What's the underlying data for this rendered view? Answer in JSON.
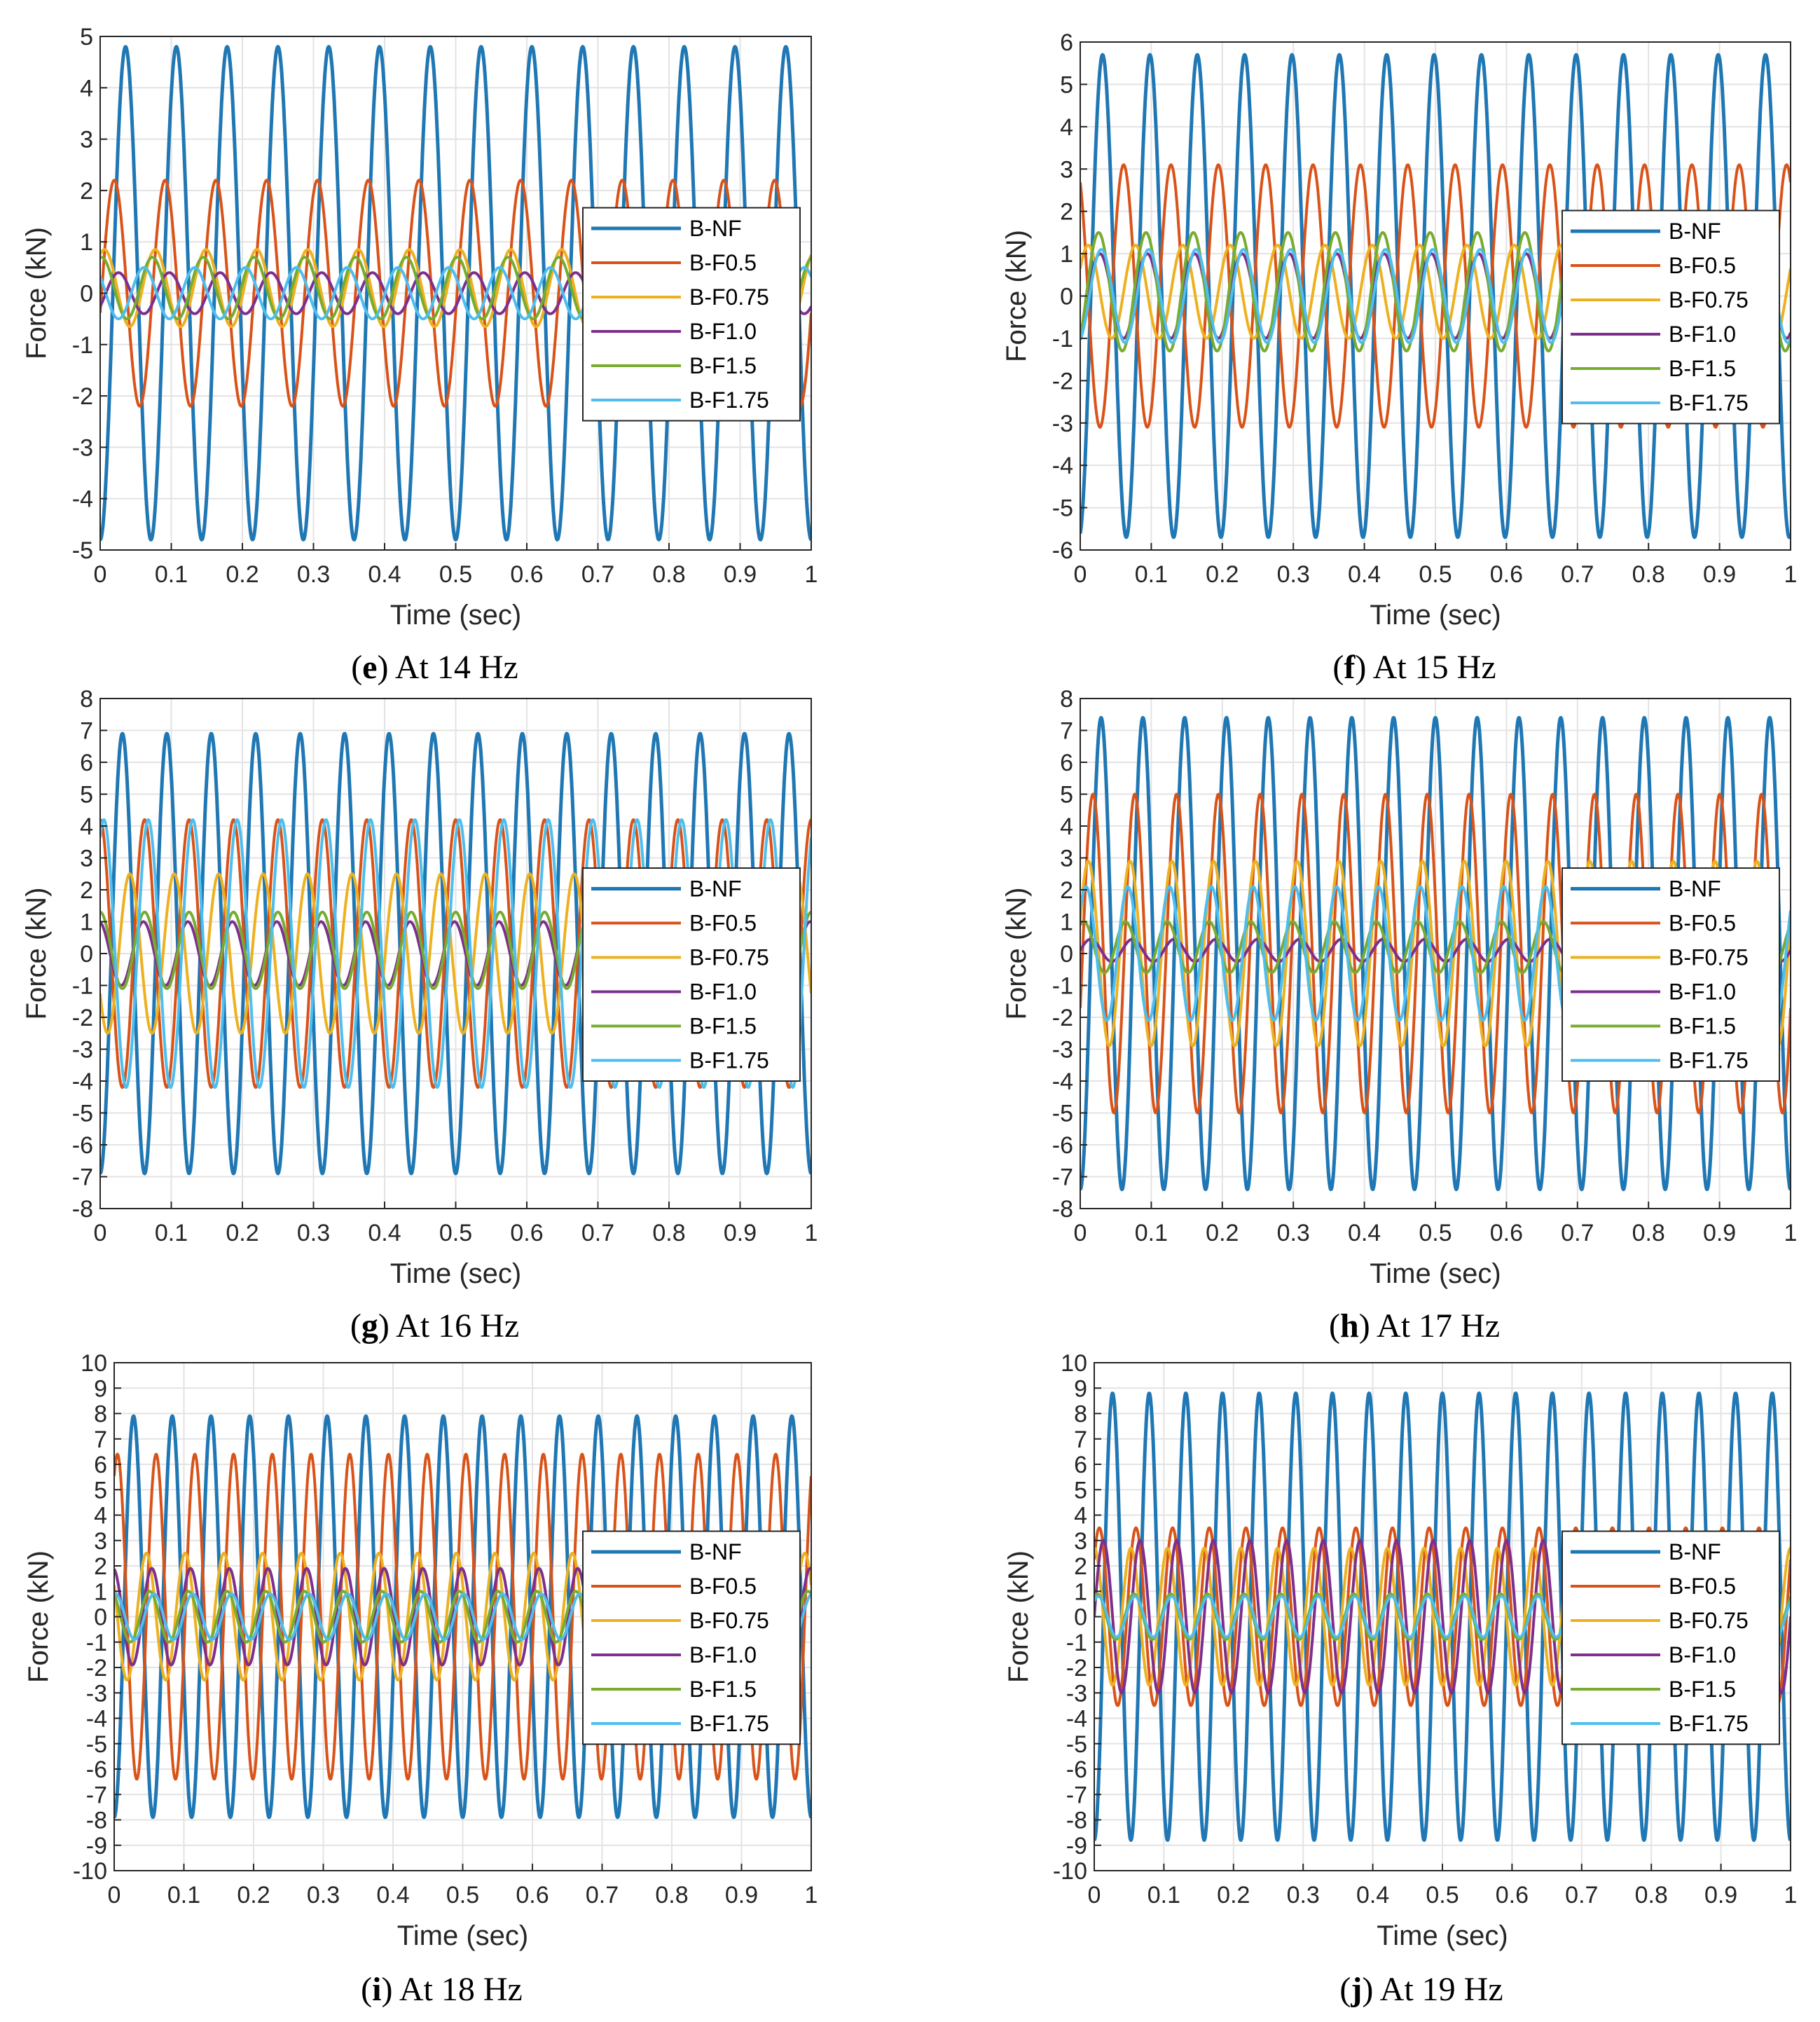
{
  "figure": {
    "colors": {
      "B-NF": "#1f77b4",
      "B-F0.5": "#d95319",
      "B-F0.75": "#edb120",
      "B-F1.0": "#7e2f8e",
      "B-F1.5": "#77ac30",
      "B-F1.75": "#4dbeee",
      "grid": "#e3e3e3",
      "axes": "#262626"
    }
  },
  "chart_data": [
    {
      "type": "line",
      "panel": "e",
      "caption_letter": "e",
      "caption_text": "At 14 Hz",
      "frequency_hz": 14,
      "xlabel": "Time (sec)",
      "ylabel": "Force (kN)",
      "xlim": [
        0,
        1
      ],
      "ylim": [
        -5,
        5
      ],
      "xticks": [
        "0",
        "0.1",
        "0.2",
        "0.3",
        "0.4",
        "0.5",
        "0.6",
        "0.7",
        "0.8",
        "0.9",
        "1"
      ],
      "yticks": [
        "-5",
        "-4",
        "-3",
        "-2",
        "-1",
        "0",
        "1",
        "2",
        "3",
        "4",
        "5"
      ],
      "grid": true,
      "legend_position": "center-right",
      "legend": [
        "B-NF",
        "B-F0.5",
        "B-F0.75",
        "B-F1.0",
        "B-F1.5",
        "B-F1.75"
      ],
      "series": [
        {
          "name": "B-NF",
          "amplitude": 4.8,
          "offset": 0,
          "phase_deg": -90
        },
        {
          "name": "B-F0.5",
          "amplitude": 2.2,
          "offset": 0,
          "phase_deg": -10
        },
        {
          "name": "B-F0.75",
          "amplitude": 0.75,
          "offset": 0.1,
          "phase_deg": 60
        },
        {
          "name": "B-F1.0",
          "amplitude": 0.4,
          "offset": 0,
          "phase_deg": -40
        },
        {
          "name": "B-F1.5",
          "amplitude": 0.6,
          "offset": 0.1,
          "phase_deg": 80
        },
        {
          "name": "B-F1.75",
          "amplitude": 0.5,
          "offset": 0,
          "phase_deg": 140
        }
      ]
    },
    {
      "type": "line",
      "panel": "f",
      "caption_letter": "f",
      "caption_text": "At 15 Hz",
      "frequency_hz": 15,
      "xlabel": "Time (sec)",
      "ylabel": "Force (kN)",
      "xlim": [
        0,
        1
      ],
      "ylim": [
        -6,
        6
      ],
      "xticks": [
        "0",
        "0.1",
        "0.2",
        "0.3",
        "0.4",
        "0.5",
        "0.6",
        "0.7",
        "0.8",
        "0.9",
        "1"
      ],
      "yticks": [
        "-6",
        "-5",
        "-4",
        "-3",
        "-2",
        "-1",
        "0",
        "1",
        "2",
        "3",
        "4",
        "5",
        "6"
      ],
      "grid": true,
      "legend_position": "center-right",
      "legend": [
        "B-NF",
        "B-F0.5",
        "B-F0.75",
        "B-F1.0",
        "B-F1.5",
        "B-F1.75"
      ],
      "series": [
        {
          "name": "B-NF",
          "amplitude": 5.7,
          "offset": 0,
          "phase_deg": -80
        },
        {
          "name": "B-F0.5",
          "amplitude": 3.1,
          "offset": 0,
          "phase_deg": 120
        },
        {
          "name": "B-F0.75",
          "amplitude": 1.1,
          "offset": 0.1,
          "phase_deg": 30
        },
        {
          "name": "B-F1.0",
          "amplitude": 1.0,
          "offset": 0,
          "phase_deg": -60
        },
        {
          "name": "B-F1.5",
          "amplitude": 1.4,
          "offset": 0.1,
          "phase_deg": -50
        },
        {
          "name": "B-F1.75",
          "amplitude": 1.1,
          "offset": 0,
          "phase_deg": -70
        }
      ]
    },
    {
      "type": "line",
      "panel": "g",
      "caption_letter": "g",
      "caption_text": "At 16 Hz",
      "frequency_hz": 16,
      "xlabel": "Time (sec)",
      "ylabel": "Force (kN)",
      "xlim": [
        0,
        1
      ],
      "ylim": [
        -8,
        8
      ],
      "xticks": [
        "0",
        "0.1",
        "0.2",
        "0.3",
        "0.4",
        "0.5",
        "0.6",
        "0.7",
        "0.8",
        "0.9",
        "1"
      ],
      "yticks": [
        "-8",
        "-7",
        "-6",
        "-5",
        "-4",
        "-3",
        "-2",
        "-1",
        "0",
        "1",
        "2",
        "3",
        "4",
        "5",
        "6",
        "7",
        "8"
      ],
      "grid": true,
      "legend_position": "center-right",
      "legend": [
        "B-NF",
        "B-F0.5",
        "B-F0.75",
        "B-F1.0",
        "B-F1.5",
        "B-F1.75"
      ],
      "series": [
        {
          "name": "B-NF",
          "amplitude": 6.9,
          "offset": 0,
          "phase_deg": -90
        },
        {
          "name": "B-F0.5",
          "amplitude": 4.2,
          "offset": 0,
          "phase_deg": 90
        },
        {
          "name": "B-F0.75",
          "amplitude": 2.5,
          "offset": 0,
          "phase_deg": -150
        },
        {
          "name": "B-F1.0",
          "amplitude": 1.0,
          "offset": 0,
          "phase_deg": 100
        },
        {
          "name": "B-F1.5",
          "amplitude": 1.2,
          "offset": 0.1,
          "phase_deg": 90
        },
        {
          "name": "B-F1.75",
          "amplitude": 4.2,
          "offset": 0,
          "phase_deg": 60
        }
      ]
    },
    {
      "type": "line",
      "panel": "h",
      "caption_letter": "h",
      "caption_text": "At 17 Hz",
      "frequency_hz": 17,
      "xlabel": "Time (sec)",
      "ylabel": "Force (kN)",
      "xlim": [
        0,
        1
      ],
      "ylim": [
        -8,
        8
      ],
      "xticks": [
        "0",
        "0.1",
        "0.2",
        "0.3",
        "0.4",
        "0.5",
        "0.6",
        "0.7",
        "0.8",
        "0.9",
        "1"
      ],
      "yticks": [
        "-8",
        "-7",
        "-6",
        "-5",
        "-4",
        "-3",
        "-2",
        "-1",
        "0",
        "1",
        "2",
        "3",
        "4",
        "5",
        "6",
        "7",
        "8"
      ],
      "grid": true,
      "legend_position": "center-right",
      "legend": [
        "B-NF",
        "B-F0.5",
        "B-F0.75",
        "B-F1.0",
        "B-F1.5",
        "B-F1.75"
      ],
      "series": [
        {
          "name": "B-NF",
          "amplitude": 7.4,
          "offset": 0,
          "phase_deg": -90
        },
        {
          "name": "B-F0.5",
          "amplitude": 5.0,
          "offset": 0,
          "phase_deg": -20
        },
        {
          "name": "B-F0.75",
          "amplitude": 2.9,
          "offset": 0,
          "phase_deg": 20
        },
        {
          "name": "B-F1.0",
          "amplitude": 0.35,
          "offset": 0.1,
          "phase_deg": 0
        },
        {
          "name": "B-F1.5",
          "amplitude": 0.8,
          "offset": 0.2,
          "phase_deg": 60
        },
        {
          "name": "B-F1.75",
          "amplitude": 2.1,
          "offset": 0,
          "phase_deg": 40
        }
      ]
    },
    {
      "type": "line",
      "panel": "i",
      "caption_letter": "i",
      "caption_text": "At 18 Hz",
      "frequency_hz": 18,
      "xlabel": "Time (sec)",
      "ylabel": "Force (kN)",
      "xlim": [
        0,
        1
      ],
      "ylim": [
        -10,
        10
      ],
      "xticks": [
        "0",
        "0.1",
        "0.2",
        "0.3",
        "0.4",
        "0.5",
        "0.6",
        "0.7",
        "0.8",
        "0.9",
        "1"
      ],
      "yticks": [
        "-10",
        "-9",
        "-8",
        "-7",
        "-6",
        "-5",
        "-4",
        "-3",
        "-2",
        "-1",
        "0",
        "1",
        "2",
        "3",
        "4",
        "5",
        "6",
        "7",
        "8",
        "9",
        "10"
      ],
      "grid": true,
      "legend_position": "center-right",
      "legend": [
        "B-NF",
        "B-F0.5",
        "B-F0.75",
        "B-F1.0",
        "B-F1.5",
        "B-F1.75"
      ],
      "series": [
        {
          "name": "B-NF",
          "amplitude": 7.9,
          "offset": 0,
          "phase_deg": -90
        },
        {
          "name": "B-F0.5",
          "amplitude": 6.4,
          "offset": 0,
          "phase_deg": 60
        },
        {
          "name": "B-F0.75",
          "amplitude": 2.5,
          "offset": 0,
          "phase_deg": 150
        },
        {
          "name": "B-F1.0",
          "amplitude": 1.9,
          "offset": 0,
          "phase_deg": 100
        },
        {
          "name": "B-F1.5",
          "amplitude": 1.0,
          "offset": 0,
          "phase_deg": 120
        },
        {
          "name": "B-F1.75",
          "amplitude": 0.9,
          "offset": 0,
          "phase_deg": 80
        }
      ]
    },
    {
      "type": "line",
      "panel": "j",
      "caption_letter": "j",
      "caption_text": "At 19 Hz",
      "frequency_hz": 19,
      "xlabel": "Time (sec)",
      "ylabel": "Force (kN)",
      "xlim": [
        0,
        1
      ],
      "ylim": [
        -10,
        10
      ],
      "xticks": [
        "0",
        "0.1",
        "0.2",
        "0.3",
        "0.4",
        "0.5",
        "0.6",
        "0.7",
        "0.8",
        "0.9",
        "1"
      ],
      "yticks": [
        "-10",
        "-9",
        "-8",
        "-7",
        "-6",
        "-5",
        "-4",
        "-3",
        "-2",
        "-1",
        "0",
        "1",
        "2",
        "3",
        "4",
        "5",
        "6",
        "7",
        "8",
        "9",
        "10"
      ],
      "grid": true,
      "legend_position": "center-right",
      "legend": [
        "B-NF",
        "B-F0.5",
        "B-F0.75",
        "B-F1.0",
        "B-F1.5",
        "B-F1.75"
      ],
      "series": [
        {
          "name": "B-NF",
          "amplitude": 8.8,
          "offset": 0,
          "phase_deg": -90
        },
        {
          "name": "B-F0.5",
          "amplitude": 3.5,
          "offset": 0,
          "phase_deg": 40
        },
        {
          "name": "B-F0.75",
          "amplitude": 2.7,
          "offset": 0,
          "phase_deg": 90
        },
        {
          "name": "B-F1.0",
          "amplitude": 3.0,
          "offset": 0,
          "phase_deg": 0
        },
        {
          "name": "B-F1.5",
          "amplitude": 0.9,
          "offset": 0,
          "phase_deg": 60
        },
        {
          "name": "B-F1.75",
          "amplitude": 0.8,
          "offset": 0,
          "phase_deg": 50
        }
      ]
    }
  ]
}
